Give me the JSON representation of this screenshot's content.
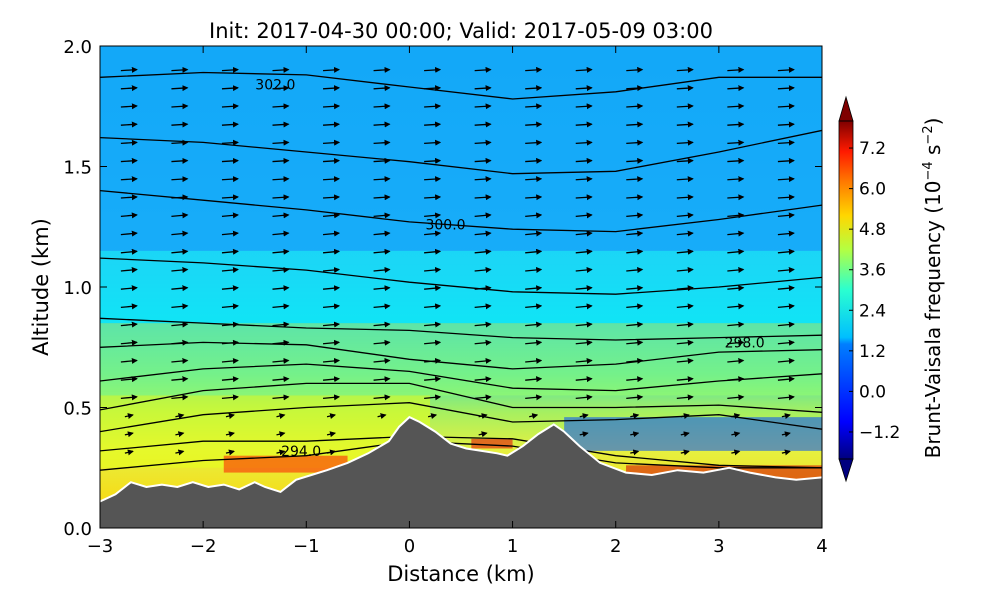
{
  "chart_data": {
    "type": "heatmap",
    "title": "Init: 2017-04-30 00:00; Valid: 2017-05-09 03:00",
    "xlabel": "Distance (km)",
    "ylabel": "Altitude (km)",
    "xlim": [
      -3,
      4
    ],
    "ylim": [
      0.0,
      2.0
    ],
    "x_ticks": [
      -3,
      -2,
      -1,
      0,
      1,
      2,
      3,
      4
    ],
    "y_ticks": [
      "0.0",
      "0.5",
      "1.0",
      "1.5",
      "2.0"
    ],
    "colorbar": {
      "label": "Brunt-Vaisala frequency (10",
      "label_exp": "−4",
      "label_unit": " s",
      "label_unit_exp": "−2",
      "label_close": ")",
      "min": -2.0,
      "max": 8.0,
      "extend": "both",
      "ticks": [
        "−1.2",
        "0.0",
        "1.2",
        "2.4",
        "3.6",
        "4.8",
        "6.0",
        "7.2"
      ]
    },
    "colors": {
      "terrain": "#555555",
      "terrain_edge": "#ffffff",
      "contour": "#000000",
      "vector": "#000000"
    },
    "contour_labels": [
      {
        "text": "302.0",
        "x": -1.3,
        "y": 1.84
      },
      {
        "text": "300.0",
        "x": 0.35,
        "y": 1.26
      },
      {
        "text": "298.0",
        "x": 3.25,
        "y": 0.77
      },
      {
        "text": "294.0",
        "x": -1.05,
        "y": 0.32
      }
    ],
    "terrain": {
      "x": [
        -3.0,
        -2.85,
        -2.7,
        -2.55,
        -2.4,
        -2.25,
        -2.1,
        -1.95,
        -1.8,
        -1.65,
        -1.5,
        -1.4,
        -1.25,
        -1.1,
        -0.95,
        -0.8,
        -0.6,
        -0.4,
        -0.2,
        -0.1,
        0.0,
        0.1,
        0.25,
        0.4,
        0.55,
        0.7,
        0.85,
        0.95,
        1.1,
        1.25,
        1.4,
        1.5,
        1.65,
        1.85,
        2.1,
        2.35,
        2.6,
        2.85,
        3.1,
        3.3,
        3.55,
        3.75,
        4.0
      ],
      "y": [
        0.11,
        0.14,
        0.19,
        0.17,
        0.18,
        0.17,
        0.19,
        0.17,
        0.18,
        0.16,
        0.19,
        0.17,
        0.15,
        0.2,
        0.22,
        0.24,
        0.27,
        0.31,
        0.36,
        0.42,
        0.46,
        0.44,
        0.4,
        0.35,
        0.33,
        0.32,
        0.31,
        0.3,
        0.34,
        0.39,
        0.43,
        0.4,
        0.34,
        0.27,
        0.23,
        0.22,
        0.24,
        0.23,
        0.25,
        0.23,
        0.21,
        0.2,
        0.21
      ]
    },
    "isentropes": [
      {
        "x": [
          -3,
          -2,
          -1,
          0,
          1,
          2,
          3,
          4
        ],
        "y": [
          1.87,
          1.89,
          1.88,
          1.83,
          1.78,
          1.81,
          1.87,
          1.87
        ]
      },
      {
        "x": [
          -3,
          -2,
          -1,
          0,
          1,
          2,
          3,
          4
        ],
        "y": [
          1.62,
          1.6,
          1.56,
          1.52,
          1.47,
          1.48,
          1.56,
          1.65
        ]
      },
      {
        "x": [
          -3,
          -2,
          -1,
          0,
          1,
          2,
          3,
          4
        ],
        "y": [
          1.4,
          1.36,
          1.32,
          1.27,
          1.24,
          1.23,
          1.28,
          1.34
        ]
      },
      {
        "x": [
          -3,
          -2,
          -1,
          0,
          1,
          2,
          3,
          4
        ],
        "y": [
          1.12,
          1.1,
          1.07,
          1.02,
          0.98,
          0.97,
          1.0,
          1.04
        ]
      },
      {
        "x": [
          -3,
          -2,
          -1,
          0,
          1,
          2,
          3,
          4
        ],
        "y": [
          0.87,
          0.85,
          0.83,
          0.82,
          0.79,
          0.78,
          0.79,
          0.8
        ]
      },
      {
        "x": [
          -3,
          -2,
          -1,
          0,
          1,
          2,
          3,
          4
        ],
        "y": [
          0.75,
          0.77,
          0.76,
          0.7,
          0.66,
          0.68,
          0.73,
          0.74
        ]
      },
      {
        "x": [
          -3,
          -2,
          -1,
          0,
          1,
          2,
          3,
          4
        ],
        "y": [
          0.61,
          0.66,
          0.68,
          0.65,
          0.58,
          0.57,
          0.61,
          0.64
        ]
      },
      {
        "x": [
          -3,
          -2,
          -1,
          0,
          1,
          2,
          3,
          4
        ],
        "y": [
          0.49,
          0.57,
          0.6,
          0.6,
          0.5,
          0.5,
          0.51,
          0.48
        ]
      },
      {
        "x": [
          -3,
          -2,
          -1,
          0,
          1,
          2,
          3,
          4
        ],
        "y": [
          0.4,
          0.47,
          0.5,
          0.52,
          0.44,
          0.45,
          0.47,
          0.41
        ]
      },
      {
        "x": [
          -3,
          -2,
          -1,
          0,
          1,
          2,
          3,
          4
        ],
        "y": [
          0.32,
          0.36,
          0.36,
          0.38,
          0.37,
          0.3,
          0.26,
          0.25
        ]
      },
      {
        "x": [
          -3,
          -2,
          -1,
          0,
          1,
          2,
          3,
          4
        ],
        "y": [
          0.24,
          0.28,
          0.3,
          0.36,
          0.34,
          0.27,
          0.25,
          0.25
        ]
      }
    ],
    "field_regions": [
      {
        "level": 1.0,
        "x": [
          -3,
          4
        ],
        "y": [
          1.15,
          2.0
        ]
      },
      {
        "level": 1.8,
        "x": [
          -3,
          4
        ],
        "y": [
          0.85,
          1.15
        ]
      },
      {
        "level": 3.2,
        "x": [
          -3,
          4
        ],
        "y": [
          0.55,
          0.85
        ]
      },
      {
        "level": 4.0,
        "x": [
          -3,
          0.2
        ],
        "y": [
          0.25,
          0.55
        ]
      },
      {
        "level": 6.5,
        "x": [
          -1.8,
          -0.6
        ],
        "y": [
          0.23,
          0.3
        ]
      },
      {
        "level": 0.0,
        "x": [
          1.5,
          4.0
        ],
        "y": [
          0.32,
          0.46
        ]
      },
      {
        "level": 7.2,
        "x": [
          2.1,
          4.0
        ],
        "y": [
          0.2,
          0.26
        ]
      },
      {
        "level": 7.0,
        "x": [
          0.6,
          1.0
        ],
        "y": [
          0.33,
          0.37
        ]
      }
    ]
  }
}
